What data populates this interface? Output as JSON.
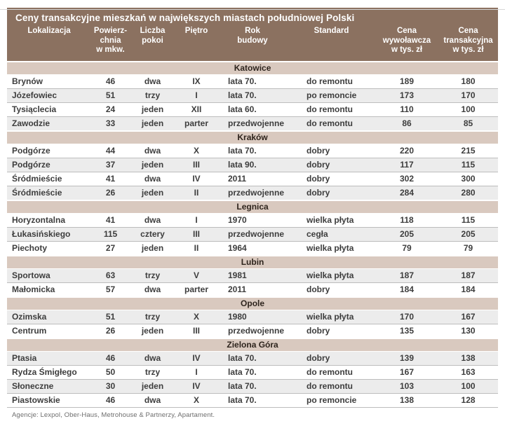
{
  "colors": {
    "header_bg": "#8b7160",
    "header_text": "#ffffff",
    "section_bg": "#d9c9bf",
    "section_text": "#2e241d",
    "row_alt_bg": "#ececec",
    "row_border": "#bdbdbd",
    "data_text": "#3d3d3d",
    "footnote_text": "#6e6e6e"
  },
  "chart_data": {
    "type": "table",
    "title": "Ceny transakcyjne mieszkań w największych miastach południowej Polski",
    "columns": [
      "Lokalizacja",
      "Powierz-\nchnia\nw mkw.",
      "Liczba\npokoi",
      "Piętro",
      "Rok\nbudowy",
      "Standard",
      "Cena\nwywoławcza\nw tys. zł",
      "Cena\ntransakcyjna\nw tys. zł"
    ],
    "sections": [
      {
        "city": "Katowice",
        "rows": [
          [
            "Brynów",
            "46",
            "dwa",
            "IX",
            "lata 70.",
            "do remontu",
            "189",
            "180"
          ],
          [
            "Józefowiec",
            "51",
            "trzy",
            "I",
            "lata 70.",
            "po remoncie",
            "173",
            "170"
          ],
          [
            "Tysiąclecia",
            "24",
            "jeden",
            "XII",
            "lata 60.",
            "do remontu",
            "110",
            "100"
          ],
          [
            "Zawodzie",
            "33",
            "jeden",
            "parter",
            "przedwojenne",
            "do remontu",
            "86",
            "85"
          ]
        ]
      },
      {
        "city": "Kraków",
        "rows": [
          [
            "Podgórze",
            "44",
            "dwa",
            "X",
            "lata 70.",
            "dobry",
            "220",
            "215"
          ],
          [
            "Podgórze",
            "37",
            "jeden",
            "III",
            "lata 90.",
            "dobry",
            "117",
            "115"
          ],
          [
            "Śródmieście",
            "41",
            "dwa",
            "IV",
            "2011",
            "dobry",
            "302",
            "300"
          ],
          [
            "Śródmieście",
            "26",
            "jeden",
            "II",
            "przedwojenne",
            "dobry",
            "284",
            "280"
          ]
        ]
      },
      {
        "city": "Legnica",
        "rows": [
          [
            "Horyzontalna",
            "41",
            "dwa",
            "I",
            "1970",
            "wielka płyta",
            "118",
            "115"
          ],
          [
            "Łukasińskiego",
            "115",
            "cztery",
            "III",
            "przedwojenne",
            "cegła",
            "205",
            "205"
          ],
          [
            "Piechoty",
            "27",
            "jeden",
            "II",
            "1964",
            "wielka płyta",
            "79",
            "79"
          ]
        ]
      },
      {
        "city": "Lubin",
        "rows": [
          [
            "Sportowa",
            "63",
            "trzy",
            "V",
            "1981",
            "wielka płyta",
            "187",
            "187"
          ],
          [
            "Małomicka",
            "57",
            "dwa",
            "parter",
            "2011",
            "dobry",
            "184",
            "184"
          ]
        ]
      },
      {
        "city": "Opole",
        "rows": [
          [
            "Ozimska",
            "51",
            "trzy",
            "X",
            "1980",
            "wielka płyta",
            "170",
            "167"
          ],
          [
            "Centrum",
            "26",
            "jeden",
            "III",
            "przedwojenne",
            "dobry",
            "135",
            "130"
          ]
        ]
      },
      {
        "city": "Zielona Góra",
        "rows": [
          [
            "Ptasia",
            "46",
            "dwa",
            "IV",
            "lata 70.",
            "dobry",
            "139",
            "138"
          ],
          [
            "Rydza Śmigłego",
            "50",
            "trzy",
            "I",
            "lata 70.",
            "do remontu",
            "167",
            "163"
          ],
          [
            "Słoneczne",
            "30",
            "jeden",
            "IV",
            "lata 70.",
            "do remontu",
            "103",
            "100"
          ],
          [
            "Piastowskie",
            "46",
            "dwa",
            "X",
            "lata 70.",
            "po remoncie",
            "138",
            "128"
          ]
        ]
      }
    ],
    "footnote": "Agencje: Lexpol, Ober-Haus, Metrohouse & Partnerzy, Apartament."
  }
}
